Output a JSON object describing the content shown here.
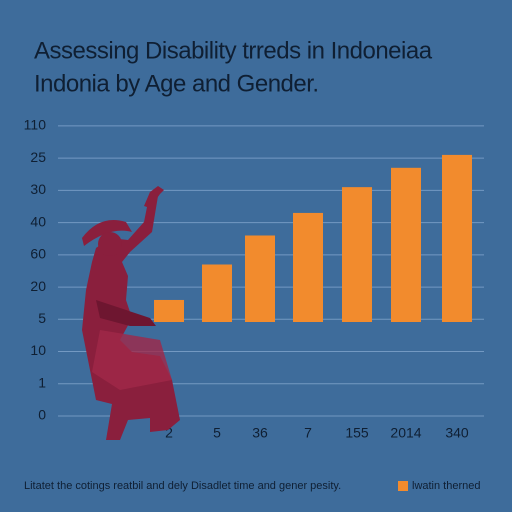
{
  "chart_data": {
    "type": "bar",
    "title": [
      "Assessing Disability trreds in Indoneiaa",
      "Indonia by Age and Gender."
    ],
    "categories": [
      "2",
      "5",
      "36",
      "7",
      "155",
      "2014",
      "340"
    ],
    "values": [
      3.6,
      4.7,
      5.6,
      6.3,
      7.1,
      7.7,
      8.1
    ],
    "color": "#f28b2d",
    "ylim": [
      0,
      9.4
    ],
    "yticks": [
      {
        "value": 0,
        "label": "0"
      },
      {
        "value": 1,
        "label": "1"
      },
      {
        "value": 2,
        "label": "10"
      },
      {
        "value": 3,
        "label": "5"
      },
      {
        "value": 4,
        "label": "20"
      },
      {
        "value": 5,
        "label": "60"
      },
      {
        "value": 6,
        "label": "40"
      },
      {
        "value": 7,
        "label": "30"
      },
      {
        "value": 8,
        "label": "25"
      },
      {
        "value": 9,
        "label": "110"
      }
    ],
    "grid": true,
    "caption": "Litatet the cotings reatbil and dely Disadlet time and gener pesity.",
    "legend": "lwatin therned"
  }
}
